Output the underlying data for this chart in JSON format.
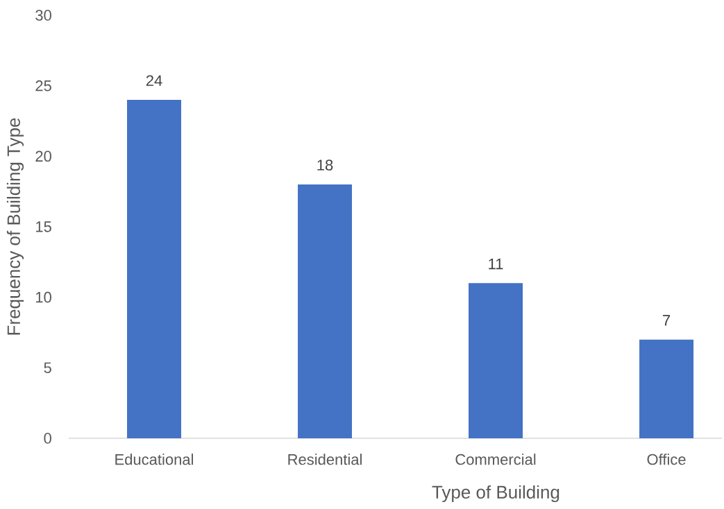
{
  "chart_data": {
    "type": "bar",
    "xlabel": "Type of Building",
    "ylabel": "Frequency of Building Type",
    "categories": [
      "Educational",
      "Residential",
      "Commercial",
      "Office"
    ],
    "values": [
      24,
      18,
      11,
      7
    ],
    "color": "#4472c4",
    "ylim": [
      0,
      30
    ],
    "yticks": [
      0,
      5,
      10,
      15,
      20,
      25,
      30
    ],
    "data_labels": true,
    "grid": false
  }
}
